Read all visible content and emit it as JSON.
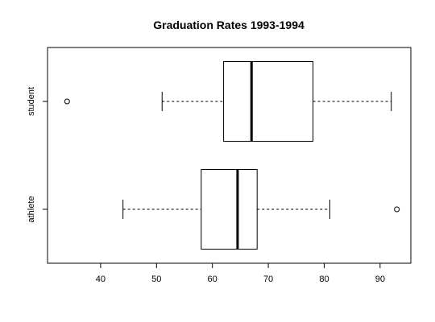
{
  "chart_data": {
    "type": "boxplot",
    "orientation": "horizontal",
    "title": "Graduation Rates 1993-1994",
    "xlabel": "",
    "ylabel": "",
    "xlim": [
      30.5,
      95.5
    ],
    "x_ticks": [
      40,
      50,
      60,
      70,
      80,
      90
    ],
    "grid": false,
    "series": [
      {
        "name": "student",
        "whisker_low": 51,
        "q1": 62,
        "median": 67,
        "q3": 78,
        "whisker_high": 92,
        "outliers": [
          34
        ]
      },
      {
        "name": "athlete",
        "whisker_low": 44,
        "q1": 58,
        "median": 64.5,
        "q3": 68,
        "whisker_high": 81,
        "outliers": [
          93
        ]
      }
    ]
  }
}
